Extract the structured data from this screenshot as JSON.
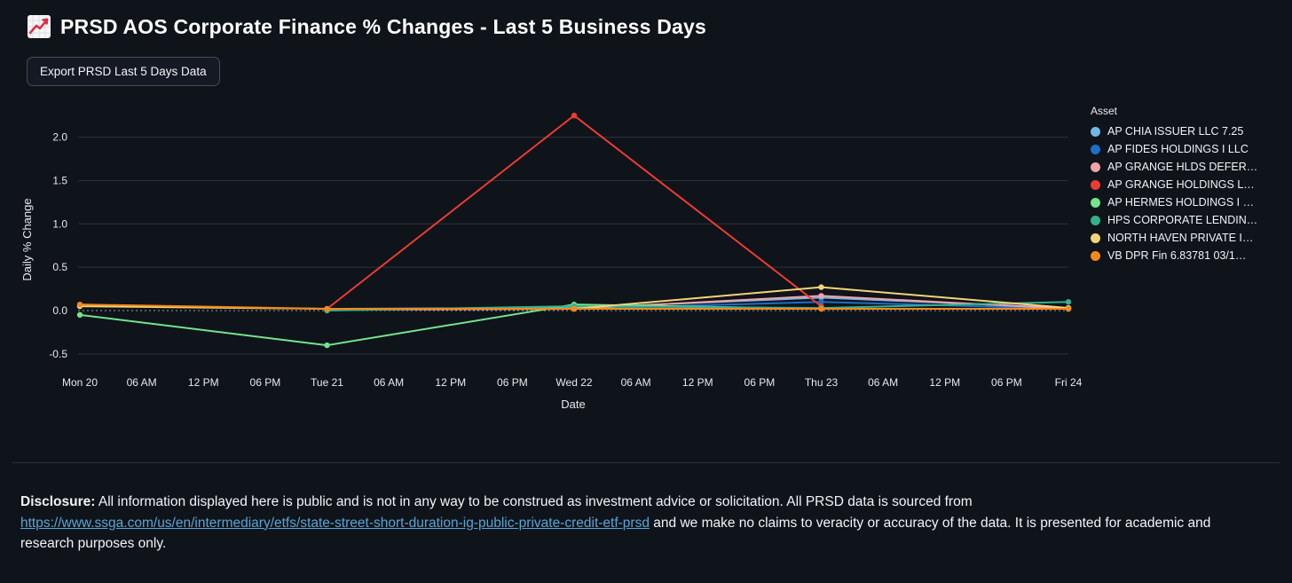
{
  "header": {
    "title": "PRSD AOS Corporate Finance % Changes - Last 5 Business Days",
    "icon": "chart-increasing-emoji"
  },
  "toolbar": {
    "export_label": "Export PRSD Last 5 Days Data"
  },
  "chart_data": {
    "type": "line",
    "title": "",
    "xlabel": "Date",
    "ylabel": "Daily % Change",
    "ylim": [
      -0.65,
      2.4
    ],
    "yticks": [
      2.0,
      1.5,
      1.0,
      0.5,
      0.0,
      -0.5
    ],
    "ytick_labels": [
      "2.0",
      "1.5",
      "1.0",
      "0.5",
      "0.0",
      "-0.5"
    ],
    "x_tick_labels": [
      "Mon 20",
      "06 AM",
      "12 PM",
      "06 PM",
      "Tue 21",
      "06 AM",
      "12 PM",
      "06 PM",
      "Wed 22",
      "06 AM",
      "12 PM",
      "06 PM",
      "Thu 23",
      "06 AM",
      "12 PM",
      "06 PM",
      "Fri 24"
    ],
    "day_categories": [
      "Mon 20",
      "Tue 21",
      "Wed 22",
      "Thu 23",
      "Fri 24"
    ],
    "grid": true,
    "zeroline": true,
    "legend_title": "Asset",
    "legend_position": "right",
    "series": [
      {
        "name": "AP CHIA ISSUER LLC 7.25",
        "color": "#72b7e5",
        "values": [
          null,
          0.02,
          0.03,
          0.15,
          0.03
        ]
      },
      {
        "name": "AP FIDES HOLDINGS I LLC",
        "color": "#1b6ec9",
        "values": [
          null,
          0.01,
          0.02,
          0.1,
          0.02
        ]
      },
      {
        "name": "AP GRANGE HLDS DEFER…",
        "color": "#f2a0aa",
        "values": [
          null,
          0.01,
          0.02,
          0.17,
          0.02
        ]
      },
      {
        "name": "AP GRANGE HOLDINGS L…",
        "color": "#ed3b33",
        "values": [
          null,
          0.02,
          2.25,
          0.05,
          null
        ]
      },
      {
        "name": "AP HERMES HOLDINGS I …",
        "color": "#70e58c",
        "values": [
          -0.05,
          -0.4,
          0.07,
          0.02,
          0.02
        ]
      },
      {
        "name": "HPS CORPORATE LENDIN…",
        "color": "#35b08d",
        "values": [
          null,
          0.0,
          0.05,
          0.03,
          0.1
        ]
      },
      {
        "name": "NORTH HAVEN PRIVATE I…",
        "color": "#f2d478",
        "values": [
          0.05,
          0.02,
          0.02,
          0.27,
          0.03
        ]
      },
      {
        "name": "VB DPR Fin 6.83781 03/1…",
        "color": "#f5891a",
        "values": [
          0.07,
          0.02,
          0.02,
          0.02,
          0.02
        ]
      }
    ]
  },
  "disclosure": {
    "label": "Disclosure:",
    "text_before_link": " All information displayed here is public and is not in any way to be construed as investment advice or solicitation. All PRSD data is sourced from ",
    "link_text": "https://www.ssga.com/us/en/intermediary/etfs/state-street-short-duration-ig-public-private-credit-etf-prsd",
    "text_after_link": " and we make no claims to veracity or accuracy of the data. It is presented for academic and research purposes only."
  },
  "colors": {
    "background": "#0f131a",
    "grid": "#2c323d",
    "zeroline": "#9aa0aa",
    "tick_text": "#e6e9ed",
    "link": "#58a6d6",
    "divider": "#2b313b"
  }
}
